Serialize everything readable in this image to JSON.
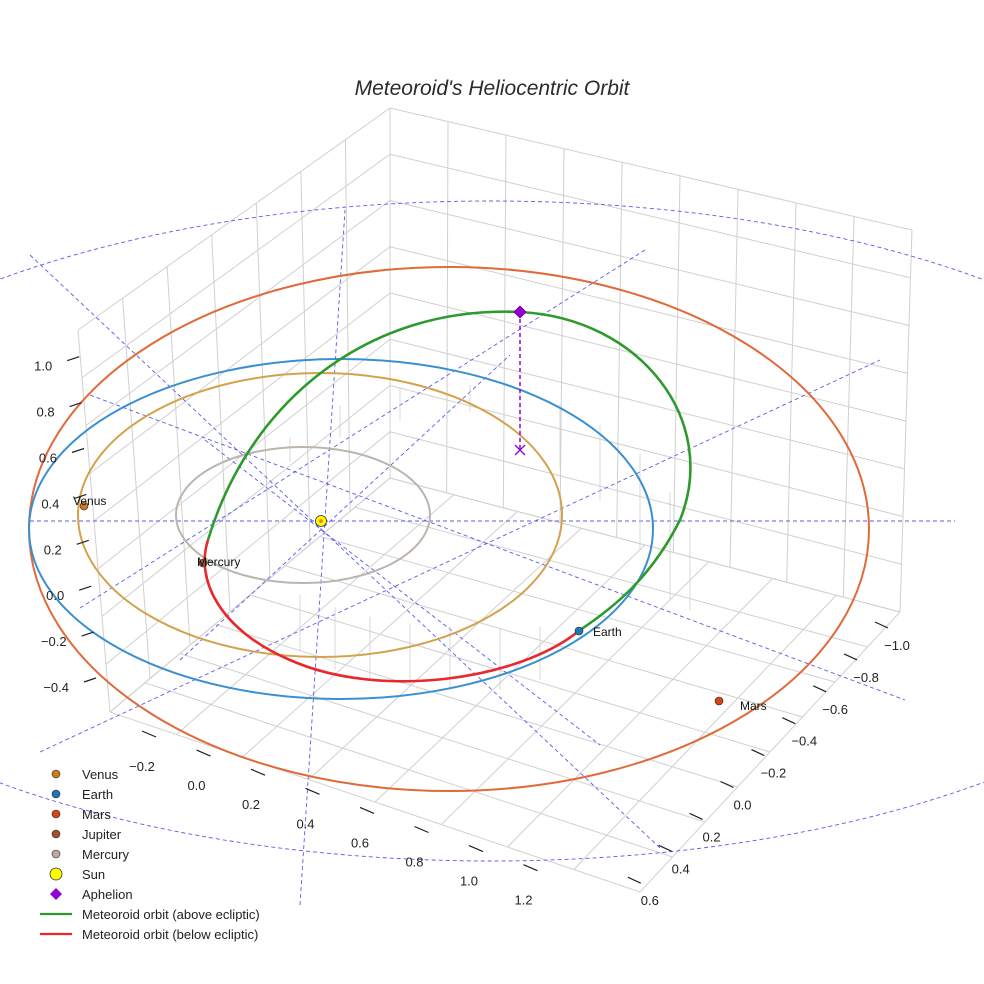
{
  "chart_data": {
    "type": "line",
    "title": "Meteoroid's Heliocentric Orbit",
    "axes": {
      "x_ticks": [
        "−0.2",
        "0.0",
        "0.2",
        "0.4",
        "0.6",
        "0.8",
        "1.0",
        "1.2"
      ],
      "y_ticks": [
        "−1.0",
        "−0.8",
        "−0.6",
        "−0.4",
        "−0.2",
        "0.0",
        "0.2",
        "0.4",
        "0.6"
      ],
      "z_ticks": [
        "−0.4",
        "−0.2",
        "0.0",
        "0.2",
        "0.4",
        "0.6",
        "0.8",
        "1.0"
      ],
      "grid": true,
      "reference_lines": "dashed blue ecliptic guide ellipses and radial lines"
    },
    "series": [
      {
        "name": "Venus",
        "kind": "orbit",
        "color": "#d4a24c"
      },
      {
        "name": "Earth",
        "kind": "orbit",
        "color": "#3a8fd0"
      },
      {
        "name": "Mars",
        "kind": "orbit",
        "color": "#e06a3a"
      },
      {
        "name": "Mercury",
        "kind": "orbit",
        "color": "#bdb5ad"
      },
      {
        "name": "Meteoroid orbit (above ecliptic)",
        "color": "#2e9a2e"
      },
      {
        "name": "Meteoroid orbit (below ecliptic)",
        "color": "#e8282b"
      }
    ],
    "points": [
      {
        "name": "Venus",
        "label": "Venus",
        "color": "#cc7a1e"
      },
      {
        "name": "Earth",
        "label": "Earth",
        "color": "#1f77b4"
      },
      {
        "name": "Mars",
        "label": "Mars",
        "color": "#d64518"
      },
      {
        "name": "Mercury",
        "label": "Mercury",
        "color": "#a0522d"
      },
      {
        "name": "Sun",
        "color": "#ffff00"
      },
      {
        "name": "Aphelion",
        "color": "#9400d3"
      }
    ],
    "legend": {
      "position": "bottom-left",
      "items": [
        {
          "label": "Venus",
          "marker": "circle",
          "color": "#cc7a1e"
        },
        {
          "label": "Earth",
          "marker": "circle",
          "color": "#1f77b4"
        },
        {
          "label": "Mars",
          "marker": "circle",
          "color": "#d64518"
        },
        {
          "label": "Jupiter",
          "marker": "circle",
          "color": "#a0522d"
        },
        {
          "label": "Mercury",
          "marker": "circle",
          "color": "#c0a8a0"
        },
        {
          "label": "Sun",
          "marker": "big-circle",
          "color": "#ffff00"
        },
        {
          "label": "Aphelion",
          "marker": "diamond",
          "color": "#9400d3"
        },
        {
          "label": "Meteoroid orbit (above ecliptic)",
          "marker": "line",
          "color": "#2e9a2e"
        },
        {
          "label": "Meteoroid orbit (below ecliptic)",
          "marker": "line",
          "color": "#e8282b"
        }
      ]
    }
  }
}
